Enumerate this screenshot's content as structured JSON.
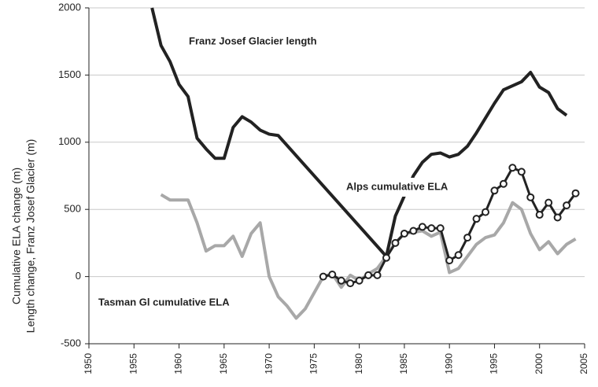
{
  "chart_data": {
    "type": "line",
    "y_label": [
      "Cumulative ELA change (m)",
      "Length change, Franz Josef Glacier (m)"
    ],
    "xlim": [
      1950,
      2005
    ],
    "xticks": [
      1950,
      1955,
      1960,
      1965,
      1970,
      1975,
      1980,
      1985,
      1990,
      1995,
      2000,
      2005
    ],
    "ylim": [
      -500,
      2000
    ],
    "yticks": [
      -500,
      0,
      500,
      1000,
      1500,
      2000
    ],
    "grid": true,
    "series": [
      {
        "name": "Franz Josef Glacier length",
        "color": "#222222",
        "width": 4,
        "markers": false,
        "x": [
          1957,
          1958,
          1959,
          1960,
          1961,
          1962,
          1963,
          1964,
          1965,
          1966,
          1967,
          1968,
          1969,
          1970,
          1971,
          1983,
          1984,
          1985,
          1986,
          1987,
          1988,
          1989,
          1990,
          1991,
          1992,
          1993,
          1994,
          1995,
          1996,
          1997,
          1998,
          1999,
          2000,
          2001,
          2002,
          2003
        ],
        "values": [
          2000,
          1720,
          1600,
          1430,
          1340,
          1030,
          950,
          880,
          880,
          1110,
          1190,
          1150,
          1090,
          1060,
          1050,
          150,
          450,
          600,
          750,
          850,
          910,
          920,
          890,
          910,
          970,
          1070,
          1180,
          1290,
          1390,
          1420,
          1450,
          1520,
          1410,
          1370,
          1250,
          1200
        ]
      },
      {
        "name": "Alps cumulative ELA",
        "color": "#222222",
        "width": 3,
        "markers": true,
        "x": [
          1976,
          1977,
          1978,
          1979,
          1980,
          1981,
          1982,
          1983,
          1984,
          1985,
          1986,
          1987,
          1988,
          1989,
          1990,
          1991,
          1992,
          1993,
          1994,
          1995,
          1996,
          1997,
          1998,
          1999,
          2000,
          2001,
          2002,
          2003,
          2004
        ],
        "values": [
          0,
          15,
          -30,
          -50,
          -30,
          10,
          10,
          140,
          250,
          320,
          340,
          370,
          360,
          360,
          120,
          160,
          290,
          430,
          480,
          640,
          690,
          810,
          780,
          590,
          460,
          550,
          440,
          530,
          620
        ]
      },
      {
        "name": "Tasman Gl cumulative ELA",
        "color": "#a8a8a8",
        "width": 4,
        "markers": false,
        "x": [
          1958,
          1959,
          1960,
          1961,
          1962,
          1963,
          1964,
          1965,
          1966,
          1967,
          1968,
          1969,
          1970,
          1971,
          1972,
          1973,
          1974,
          1975,
          1976,
          1977,
          1978,
          1979,
          1980,
          1981,
          1982,
          1983,
          1984,
          1985,
          1986,
          1987,
          1988,
          1989,
          1990,
          1991,
          1992,
          1993,
          1994,
          1995,
          1996,
          1997,
          1998,
          1999,
          2000,
          2001,
          2002,
          2003,
          2004
        ],
        "values": [
          610,
          570,
          570,
          570,
          400,
          190,
          230,
          230,
          300,
          150,
          320,
          400,
          0,
          -150,
          -220,
          -310,
          -240,
          -120,
          0,
          20,
          -80,
          10,
          -30,
          20,
          60,
          150,
          250,
          320,
          330,
          340,
          300,
          330,
          30,
          60,
          150,
          240,
          290,
          310,
          400,
          550,
          500,
          320,
          200,
          260,
          170,
          240,
          280
        ]
      }
    ]
  }
}
